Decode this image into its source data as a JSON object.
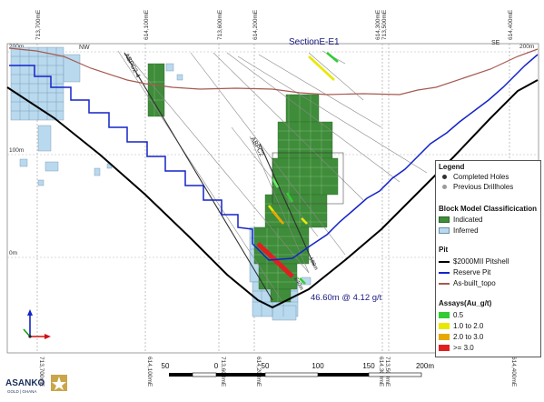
{
  "section": {
    "title": "SectionE-E1",
    "nw": "NW",
    "se": "SE",
    "elev_left": [
      "200m",
      "100m",
      "0m"
    ],
    "elev_right": [
      "200m"
    ],
    "easting_top": [
      "713,700mE",
      "614,100mE",
      "713,600mE",
      "614,200mE",
      "614,300mE",
      "713,500mE",
      "614,400mE"
    ],
    "easting_bottom": [
      "713,700mE",
      "614,100mE",
      "713,600mE",
      "614,200mE",
      "614,300mE",
      "713,500mE",
      "614,400mE"
    ],
    "hole_labels": [
      "ABPC2",
      "ABPC2-4"
    ],
    "intercept": "46.60m @ 4.12 g/t",
    "depth_labels": [
      "180m",
      "220m",
      "240m"
    ]
  },
  "legend": {
    "title": "Legend",
    "completed": "Completed Holes",
    "previous": "Previous Drillholes",
    "block_title": "Block Model Classificication",
    "indicated": "Indicated",
    "inferred": "Inferred",
    "pit_title": "Pit",
    "pitshell": "$2000MII Pitshell",
    "reserve": "Reserve Pit",
    "topo": "As-built_topo",
    "assays_title": "Assays(Au_g/t)",
    "assay_ranges": [
      "0.5",
      "1.0 to 2.0",
      "2.0 to 3.0",
      ">= 3.0"
    ]
  },
  "scale": {
    "ticks": [
      "50",
      "0",
      "50",
      "100",
      "150",
      "200m"
    ]
  },
  "logo": {
    "name": "ASANKO",
    "sub": "GOLD | GHANA"
  },
  "colors": {
    "indicated": "#3f8c3a",
    "inferred": "#b9d9ee",
    "pitshell": "#000000",
    "reserve": "#1424c8",
    "topo": "#a55a50",
    "assay": [
      "#33cc33",
      "#e8e800",
      "#e8a800",
      "#e02020"
    ]
  }
}
